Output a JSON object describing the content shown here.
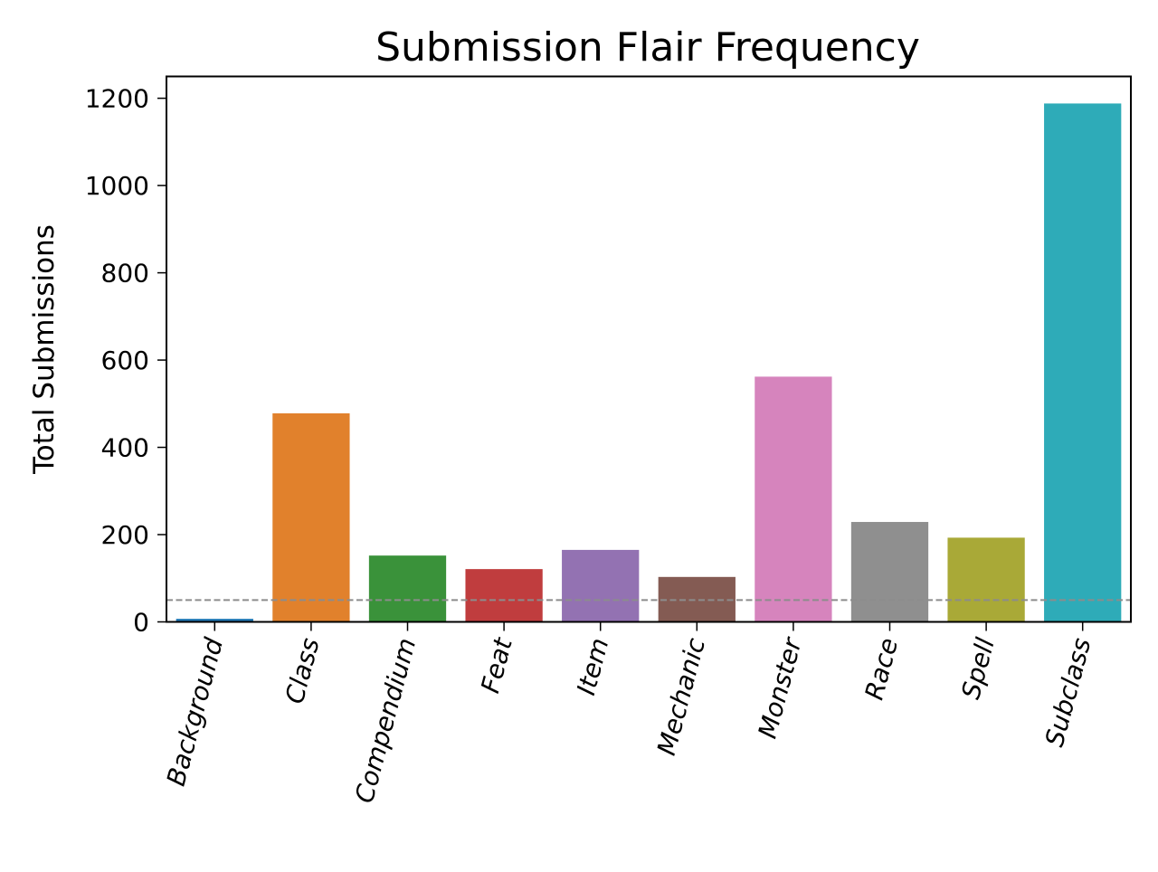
{
  "chart_data": {
    "type": "bar",
    "title": "Submission Flair Frequency",
    "xlabel": "",
    "ylabel": "Total Submissions",
    "categories": [
      "Background",
      "Class",
      "Compendium",
      "Feat",
      "Item",
      "Mechanic",
      "Monster",
      "Race",
      "Spell",
      "Subclass"
    ],
    "values": [
      7,
      478,
      152,
      121,
      165,
      103,
      562,
      229,
      193,
      1188
    ],
    "colors": [
      "#1f77b4",
      "#e1812c",
      "#3a923a",
      "#c03d3e",
      "#9372b2",
      "#845b53",
      "#d684bd",
      "#8f8f8f",
      "#a9a937",
      "#2eabb8"
    ],
    "ylim": [
      0,
      1250
    ],
    "yticks": [
      0,
      200,
      400,
      600,
      800,
      1000,
      1200
    ],
    "xtick_rotation_deg": 75,
    "reference_line": {
      "y": 50,
      "style": "dashed",
      "color": "#8c8c8c"
    },
    "grid": false,
    "legend": "none"
  }
}
